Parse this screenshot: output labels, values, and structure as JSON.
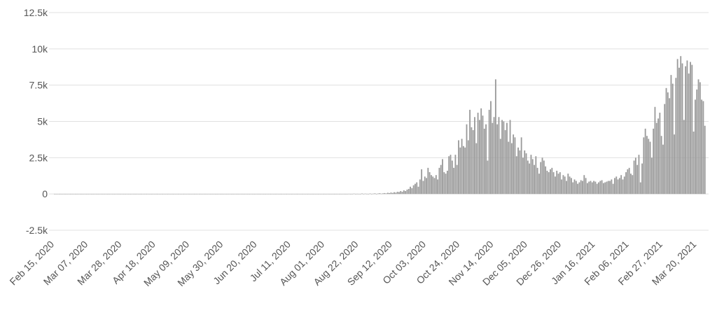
{
  "chart_data": {
    "type": "bar",
    "color": "#9a9a9a",
    "grid": true,
    "ylim": [
      -2500,
      12500
    ],
    "yticks": [
      {
        "value": -2500,
        "label": "-2.5k"
      },
      0,
      {
        "value": 2500,
        "label": "2.5k"
      },
      {
        "value": 5000,
        "label": "5k"
      },
      {
        "value": 7500,
        "label": "7.5k"
      },
      {
        "value": 10000,
        "label": "10k"
      },
      {
        "value": 12500,
        "label": "12.5k"
      }
    ],
    "categories": [
      "Feb 15, 2020",
      null,
      null,
      null,
      null,
      null,
      null,
      null,
      null,
      null,
      null,
      null,
      null,
      null,
      null,
      null,
      null,
      null,
      null,
      null,
      null,
      "Mar 07, 2020",
      null,
      null,
      null,
      null,
      null,
      null,
      null,
      null,
      null,
      null,
      null,
      null,
      null,
      null,
      null,
      null,
      null,
      null,
      null,
      null,
      "Mar 28, 2020",
      null,
      null,
      null,
      null,
      null,
      null,
      null,
      null,
      null,
      null,
      null,
      null,
      null,
      null,
      null,
      null,
      null,
      null,
      null,
      null,
      "Apr 18, 2020",
      null,
      null,
      null,
      null,
      null,
      null,
      null,
      null,
      null,
      null,
      null,
      null,
      null,
      null,
      null,
      null,
      null,
      null,
      null,
      null,
      "May 09, 2020",
      null,
      null,
      null,
      null,
      null,
      null,
      null,
      null,
      null,
      null,
      null,
      null,
      null,
      null,
      null,
      null,
      null,
      null,
      null,
      null,
      "May 30, 2020",
      null,
      null,
      null,
      null,
      null,
      null,
      null,
      null,
      null,
      null,
      null,
      null,
      null,
      null,
      null,
      null,
      null,
      null,
      null,
      null,
      "Jun 20, 2020",
      null,
      null,
      null,
      null,
      null,
      null,
      null,
      null,
      null,
      null,
      null,
      null,
      null,
      null,
      null,
      null,
      null,
      null,
      null,
      null,
      "Jul 11, 2020",
      null,
      null,
      null,
      null,
      null,
      null,
      null,
      null,
      null,
      null,
      null,
      null,
      null,
      null,
      null,
      null,
      null,
      null,
      null,
      null,
      "Aug 01, 2020",
      null,
      null,
      null,
      null,
      null,
      null,
      null,
      null,
      null,
      null,
      null,
      null,
      null,
      null,
      null,
      null,
      null,
      null,
      null,
      null,
      "Aug 22, 2020",
      null,
      null,
      null,
      null,
      null,
      null,
      null,
      null,
      null,
      null,
      null,
      null,
      null,
      null,
      null,
      null,
      null,
      null,
      null,
      null,
      "Sep 12, 2020",
      null,
      null,
      null,
      null,
      null,
      null,
      null,
      null,
      null,
      null,
      null,
      null,
      null,
      null,
      null,
      null,
      null,
      null,
      null,
      null,
      "Oct 03, 2020",
      null,
      null,
      null,
      null,
      null,
      null,
      null,
      null,
      null,
      null,
      null,
      null,
      null,
      null,
      null,
      null,
      null,
      null,
      null,
      null,
      "Oct 24, 2020",
      null,
      null,
      null,
      null,
      null,
      null,
      null,
      null,
      null,
      null,
      null,
      null,
      null,
      null,
      null,
      null,
      null,
      null,
      null,
      null,
      "Nov 14, 2020",
      null,
      null,
      null,
      null,
      null,
      null,
      null,
      null,
      null,
      null,
      null,
      null,
      null,
      null,
      null,
      null,
      null,
      null,
      null,
      null,
      "Dec 05, 2020",
      null,
      null,
      null,
      null,
      null,
      null,
      null,
      null,
      null,
      null,
      null,
      null,
      null,
      null,
      null,
      null,
      null,
      null,
      null,
      null,
      "Dec 26, 2020",
      null,
      null,
      null,
      null,
      null,
      null,
      null,
      null,
      null,
      null,
      null,
      null,
      null,
      null,
      null,
      null,
      null,
      null,
      null,
      null,
      "Jan 16, 2021",
      null,
      null,
      null,
      null,
      null,
      null,
      null,
      null,
      null,
      null,
      null,
      null,
      null,
      null,
      null,
      null,
      null,
      null,
      null,
      null,
      "Feb 06, 2021",
      null,
      null,
      null,
      null,
      null,
      null,
      null,
      null,
      null,
      null,
      null,
      null,
      null,
      null,
      null,
      null,
      null,
      null,
      null,
      null,
      "Feb 27, 2021",
      null,
      null,
      null,
      null,
      null,
      null,
      null,
      null,
      null,
      null,
      null,
      null,
      null,
      null,
      null,
      null,
      null,
      null,
      null,
      null,
      "Mar 20, 2021",
      null,
      null,
      null,
      null,
      null
    ],
    "values": [
      0,
      0,
      0,
      0,
      0,
      0,
      0,
      0,
      0,
      0,
      0,
      0,
      0,
      0,
      0,
      0,
      0,
      0,
      0,
      0,
      0,
      0,
      0,
      0,
      0,
      0,
      0,
      0,
      0,
      0,
      0,
      0,
      0,
      0,
      0,
      0,
      0,
      0,
      0,
      0,
      0,
      0,
      0,
      0,
      0,
      0,
      0,
      0,
      0,
      0,
      0,
      0,
      0,
      0,
      0,
      0,
      0,
      0,
      0,
      0,
      0,
      0,
      0,
      0,
      0,
      0,
      0,
      0,
      0,
      0,
      0,
      0,
      0,
      0,
      0,
      0,
      0,
      0,
      0,
      0,
      0,
      0,
      0,
      0,
      0,
      0,
      0,
      0,
      0,
      0,
      0,
      0,
      0,
      0,
      0,
      0,
      0,
      0,
      0,
      0,
      0,
      0,
      0,
      0,
      0,
      0,
      0,
      0,
      0,
      0,
      0,
      0,
      0,
      0,
      0,
      0,
      0,
      0,
      0,
      0,
      0,
      0,
      0,
      0,
      0,
      0,
      0,
      0,
      0,
      0,
      0,
      0,
      0,
      0,
      0,
      0,
      0,
      0,
      0,
      0,
      0,
      0,
      0,
      0,
      0,
      0,
      0,
      0,
      0,
      0,
      0,
      0,
      0,
      0,
      0,
      0,
      0,
      0,
      0,
      0,
      0,
      0,
      0,
      0,
      0,
      0,
      0,
      0,
      0,
      0,
      0,
      0,
      0,
      0,
      0,
      0,
      0,
      0,
      0,
      0,
      0,
      0,
      0,
      10,
      0,
      0,
      20,
      0,
      10,
      0,
      0,
      30,
      0,
      20,
      10,
      0,
      30,
      0,
      20,
      40,
      0,
      30,
      50,
      20,
      40,
      60,
      40,
      80,
      60,
      100,
      70,
      120,
      90,
      150,
      130,
      200,
      150,
      250,
      200,
      300,
      350,
      500,
      400,
      600,
      700,
      800,
      500,
      1000,
      1700,
      900,
      1200,
      1100,
      1800,
      1500,
      1300,
      1200,
      1100,
      1300,
      1000,
      1800,
      2000,
      2400,
      1500,
      1400,
      1600,
      2600,
      2700,
      2300,
      1800,
      2700,
      2000,
      3700,
      3200,
      3800,
      3300,
      3200,
      4800,
      3700,
      5800,
      4600,
      4400,
      5300,
      3500,
      5600,
      5100,
      5900,
      5400,
      4500,
      4800,
      2300,
      5800,
      6400,
      4900,
      5300,
      7900,
      4800,
      5300,
      3800,
      5100,
      5000,
      4400,
      4900,
      3600,
      5100,
      3500,
      4100,
      3900,
      2600,
      3200,
      3000,
      3900,
      2500,
      3000,
      2800,
      2300,
      2100,
      2700,
      2400,
      2000,
      2600,
      1800,
      1400,
      2200,
      2500,
      2300,
      1900,
      1600,
      1500,
      1700,
      1800,
      1500,
      1200,
      1600,
      1400,
      1500,
      1000,
      1300,
      1200,
      900,
      1400,
      1200,
      1100,
      800,
      1000,
      900,
      700,
      800,
      950,
      900,
      1300,
      1100,
      750,
      850,
      900,
      800,
      900,
      850,
      700,
      800,
      900,
      950,
      750,
      800,
      850,
      900,
      900,
      1000,
      700,
      1100,
      1200,
      1000,
      1100,
      1300,
      1000,
      1200,
      1500,
      1700,
      1800,
      1400,
      1300,
      2300,
      2500,
      2000,
      2700,
      800,
      2100,
      3900,
      4500,
      4000,
      3800,
      3600,
      2500,
      4500,
      6000,
      4900,
      5200,
      5600,
      4000,
      3400,
      6200,
      7300,
      7000,
      6600,
      8200,
      7600,
      4100,
      8000,
      9300,
      8700,
      9500,
      9000,
      5100,
      8800,
      9200,
      8300,
      9100,
      8900,
      4300,
      6500,
      7200,
      7900,
      7700,
      6500,
      6400,
      4700
    ]
  }
}
